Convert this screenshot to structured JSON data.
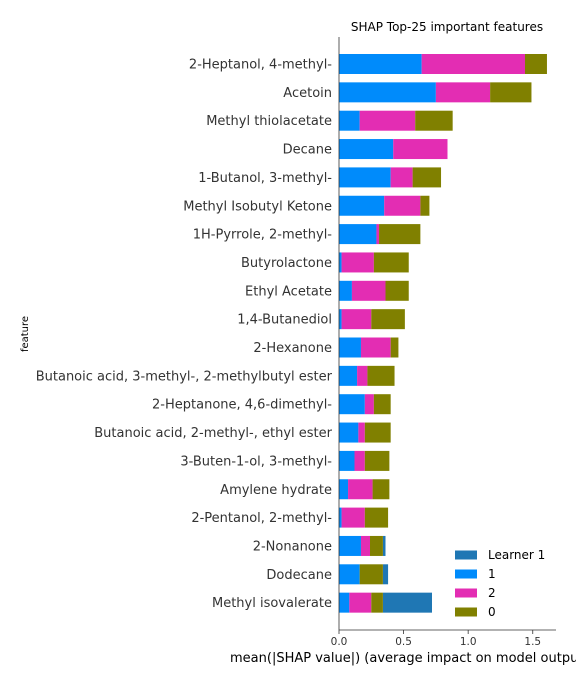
{
  "chart_data": {
    "type": "bar",
    "orientation": "horizontal",
    "stacked": true,
    "title": "SHAP Top-25 important features",
    "xlabel": "mean(|SHAP value|) (average impact on model outpu",
    "ylabel": "feature",
    "xlim": [
      0,
      1.68
    ],
    "xticks": [
      0.0,
      0.5,
      1.0,
      1.5
    ],
    "xtick_labels": [
      "0.0",
      "0.5",
      "1.0",
      "1.5"
    ],
    "grid": false,
    "legend_position": "bottom-right",
    "categories": [
      "2-Heptanol, 4-methyl-",
      "Acetoin",
      "Methyl thiolacetate",
      "Decane",
      "1-Butanol, 3-methyl-",
      "Methyl Isobutyl Ketone",
      "1H-Pyrrole, 2-methyl-",
      "Butyrolactone",
      "Ethyl Acetate",
      "1,4-Butanediol",
      "2-Hexanone",
      "Butanoic acid, 3-methyl-, 2-methylbutyl ester",
      "2-Heptanone, 4,6-dimethyl-",
      "Butanoic acid, 2-methyl-, ethyl ester",
      "3-Buten-1-ol, 3-methyl-",
      "Amylene hydrate",
      "2-Pentanol, 2-methyl-",
      "2-Nonanone",
      "Dodecane",
      "Methyl isovalerate"
    ],
    "series": [
      {
        "name": "Learner 1",
        "color": "#1f77b4",
        "values": [
          0,
          0,
          0,
          0,
          0,
          0,
          0,
          0,
          0,
          0,
          0,
          0,
          0,
          0,
          0,
          0,
          0,
          0.02,
          0.04,
          0.38
        ]
      },
      {
        "name": "1",
        "color": "#008bfb",
        "values": [
          0.64,
          0.75,
          0.16,
          0.42,
          0.4,
          0.35,
          0.29,
          0.02,
          0.1,
          0.02,
          0.17,
          0.14,
          0.2,
          0.15,
          0.12,
          0.07,
          0.02,
          0.17,
          0.16,
          0.08
        ]
      },
      {
        "name": "2",
        "color": "#e32db3",
        "values": [
          0.8,
          0.42,
          0.43,
          0.42,
          0.17,
          0.28,
          0.02,
          0.25,
          0.26,
          0.23,
          0.23,
          0.08,
          0.07,
          0.05,
          0.08,
          0.19,
          0.18,
          0.07,
          0.0,
          0.17
        ]
      },
      {
        "name": "0",
        "color": "#808000",
        "values": [
          0.17,
          0.32,
          0.29,
          0.0,
          0.22,
          0.07,
          0.32,
          0.27,
          0.18,
          0.26,
          0.06,
          0.21,
          0.13,
          0.2,
          0.19,
          0.13,
          0.18,
          0.1,
          0.18,
          0.09
        ]
      }
    ],
    "legend_order": [
      "Learner 1",
      "1",
      "2",
      "0"
    ]
  }
}
